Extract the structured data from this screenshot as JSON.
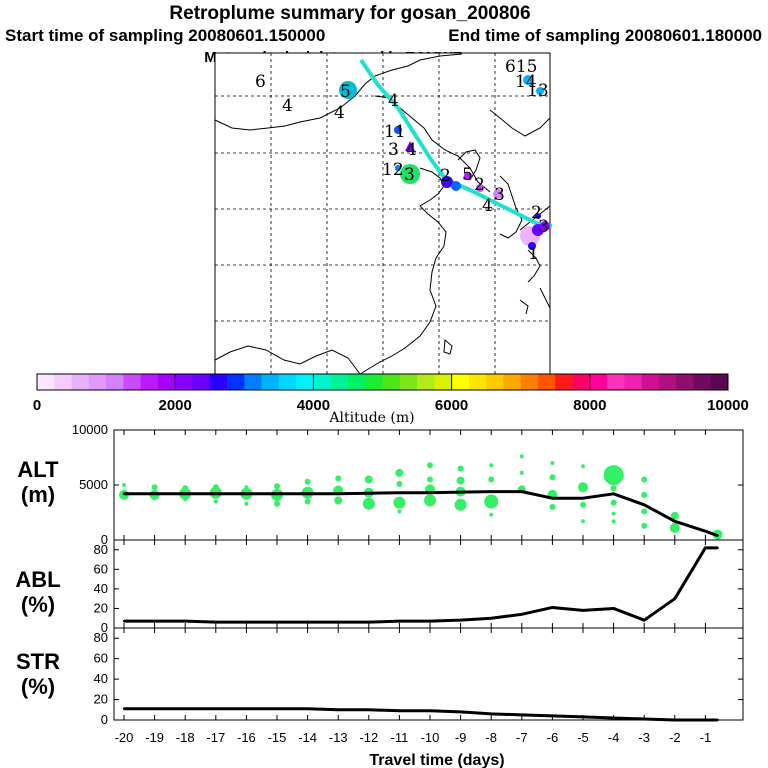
{
  "header": {
    "title": "Retroplume summary for gosan_200806",
    "start_label": "Start time of sampling 20080601.150000",
    "end_label": "End time of sampling 20080601.180000",
    "met_label": "Meteorological data used is ECMWF"
  },
  "map": {
    "day_labels": [
      {
        "text": "6",
        "color": "#00bcd4"
      },
      {
        "text": "4",
        "color": "#000000"
      },
      {
        "text": "5",
        "color": "#00bcd4"
      },
      {
        "text": "4",
        "color": "#000000"
      },
      {
        "text": "4",
        "color": "#000000"
      },
      {
        "text": "11",
        "color": "#000000"
      },
      {
        "text": "3",
        "color": "#000000"
      },
      {
        "text": "4",
        "color": "#000000"
      },
      {
        "text": "12",
        "color": "#000000"
      },
      {
        "text": "3",
        "color": "#000000"
      },
      {
        "text": "2",
        "color": "#000000"
      },
      {
        "text": "5",
        "color": "#000000"
      },
      {
        "text": "2",
        "color": "#000000"
      },
      {
        "text": "3",
        "color": "#000000"
      },
      {
        "text": "4",
        "color": "#000000"
      },
      {
        "text": "615",
        "color": "#00bcd4"
      },
      {
        "text": "14",
        "color": "#000000"
      },
      {
        "text": "13",
        "color": "#000000"
      },
      {
        "text": "2",
        "color": "#000000"
      },
      {
        "text": "3",
        "color": "#000000"
      },
      {
        "text": "1",
        "color": "#000000"
      }
    ],
    "track_color": "#20e0d0"
  },
  "colorbar": {
    "tick_labels": [
      "0",
      "2000",
      "4000",
      "6000",
      "8000",
      "10000"
    ],
    "xlabel": "Altitude (m)",
    "colors": [
      "#ffe6ff",
      "#f5ccff",
      "#eab3ff",
      "#e099ff",
      "#d580ff",
      "#c94dff",
      "#bb1aff",
      "#a600ff",
      "#8800ff",
      "#6a00ff",
      "#2a00ff",
      "#0033ff",
      "#0080ff",
      "#00b3ff",
      "#00d9ff",
      "#00f2ff",
      "#00f5cc",
      "#00f299",
      "#00f066",
      "#1aeb33",
      "#4de61a",
      "#80e61a",
      "#b3eb1a",
      "#d9f000",
      "#ffff00",
      "#ffe600",
      "#ffcc00",
      "#ffaa00",
      "#ff8000",
      "#ff5500",
      "#ff1a1a",
      "#ff0066",
      "#ff0099",
      "#ff33bb",
      "#f020b0",
      "#d01090",
      "#b01080",
      "#900e70",
      "#700a60",
      "#5a0850"
    ]
  },
  "panels": {
    "alt": {
      "label_line1": "ALT",
      "label_line2": "(m)"
    },
    "abl": {
      "label_line1": "ABL",
      "label_line2": "(%)"
    },
    "str": {
      "label_line1": "STR",
      "label_line2": "(%)"
    }
  },
  "xaxis": {
    "label": "Travel time (days)"
  },
  "chart_data": [
    {
      "type": "line",
      "title": "ALT (m)",
      "xlabel": "Travel time (days)",
      "ylabel": "ALT (m)",
      "xlim": [
        -20,
        0
      ],
      "ylim": [
        0,
        10000
      ],
      "yticks": [
        "10000",
        "5000",
        "0"
      ],
      "x": [
        -20,
        -19,
        -18,
        -17,
        -16,
        -15,
        -14,
        -13,
        -12,
        -11,
        -10,
        -9,
        -8,
        -7,
        -6,
        -5,
        -4,
        -3,
        -2,
        -1,
        -0.6
      ],
      "values": [
        4200,
        4200,
        4200,
        4200,
        4200,
        4200,
        4200,
        4200,
        4250,
        4300,
        4300,
        4350,
        4400,
        4400,
        3800,
        3800,
        4200,
        3200,
        1700,
        800,
        400
      ],
      "cluster_color": "#33f066",
      "clusters": [
        {
          "x": -20,
          "y": 5000,
          "s": 2
        },
        {
          "x": -20,
          "y": 4100,
          "s": 5
        },
        {
          "x": -19,
          "y": 4800,
          "s": 3
        },
        {
          "x": -19,
          "y": 4100,
          "s": 5
        },
        {
          "x": -19,
          "y": 3800,
          "s": 2
        },
        {
          "x": -18,
          "y": 4700,
          "s": 3
        },
        {
          "x": -18,
          "y": 4200,
          "s": 6
        },
        {
          "x": -18,
          "y": 3700,
          "s": 2
        },
        {
          "x": -17,
          "y": 4800,
          "s": 3
        },
        {
          "x": -17,
          "y": 4300,
          "s": 6
        },
        {
          "x": -17,
          "y": 3500,
          "s": 2
        },
        {
          "x": -16,
          "y": 4800,
          "s": 2
        },
        {
          "x": -16,
          "y": 4200,
          "s": 6
        },
        {
          "x": -16,
          "y": 3300,
          "s": 2
        },
        {
          "x": -15,
          "y": 4900,
          "s": 3
        },
        {
          "x": -15,
          "y": 4100,
          "s": 6
        },
        {
          "x": -15,
          "y": 3300,
          "s": 3
        },
        {
          "x": -14,
          "y": 5300,
          "s": 3
        },
        {
          "x": -14,
          "y": 4300,
          "s": 6
        },
        {
          "x": -14,
          "y": 3500,
          "s": 3
        },
        {
          "x": -13,
          "y": 5600,
          "s": 3
        },
        {
          "x": -13,
          "y": 4500,
          "s": 5
        },
        {
          "x": -13,
          "y": 3600,
          "s": 4
        },
        {
          "x": -12,
          "y": 5500,
          "s": 4
        },
        {
          "x": -12,
          "y": 4300,
          "s": 5
        },
        {
          "x": -12,
          "y": 3300,
          "s": 6
        },
        {
          "x": -11,
          "y": 6100,
          "s": 4
        },
        {
          "x": -11,
          "y": 5100,
          "s": 3
        },
        {
          "x": -11,
          "y": 3400,
          "s": 6
        },
        {
          "x": -11,
          "y": 2600,
          "s": 2
        },
        {
          "x": -10,
          "y": 6800,
          "s": 3
        },
        {
          "x": -10,
          "y": 5500,
          "s": 3
        },
        {
          "x": -10,
          "y": 4600,
          "s": 5
        },
        {
          "x": -10,
          "y": 3600,
          "s": 6
        },
        {
          "x": -9,
          "y": 6500,
          "s": 3
        },
        {
          "x": -9,
          "y": 5400,
          "s": 4
        },
        {
          "x": -9,
          "y": 4400,
          "s": 5
        },
        {
          "x": -9,
          "y": 3200,
          "s": 6
        },
        {
          "x": -8,
          "y": 6800,
          "s": 2
        },
        {
          "x": -8,
          "y": 5500,
          "s": 3
        },
        {
          "x": -8,
          "y": 3500,
          "s": 7
        },
        {
          "x": -8,
          "y": 2300,
          "s": 2
        },
        {
          "x": -7,
          "y": 7600,
          "s": 2
        },
        {
          "x": -7,
          "y": 6100,
          "s": 2
        },
        {
          "x": -7,
          "y": 4600,
          "s": 4
        },
        {
          "x": -6,
          "y": 7000,
          "s": 2
        },
        {
          "x": -6,
          "y": 5700,
          "s": 3
        },
        {
          "x": -6,
          "y": 4100,
          "s": 5
        },
        {
          "x": -6,
          "y": 3000,
          "s": 3
        },
        {
          "x": -5,
          "y": 6700,
          "s": 2
        },
        {
          "x": -5,
          "y": 4800,
          "s": 5
        },
        {
          "x": -5,
          "y": 3200,
          "s": 3
        },
        {
          "x": -5,
          "y": 1700,
          "s": 2
        },
        {
          "x": -4,
          "y": 5900,
          "s": 10
        },
        {
          "x": -4,
          "y": 4700,
          "s": 3
        },
        {
          "x": -4,
          "y": 3400,
          "s": 3
        },
        {
          "x": -4,
          "y": 2400,
          "s": 2
        },
        {
          "x": -4,
          "y": 1700,
          "s": 2
        },
        {
          "x": -3,
          "y": 5500,
          "s": 3
        },
        {
          "x": -3,
          "y": 4100,
          "s": 3
        },
        {
          "x": -3,
          "y": 2600,
          "s": 3
        },
        {
          "x": -3,
          "y": 1300,
          "s": 3
        },
        {
          "x": -2,
          "y": 2200,
          "s": 4
        },
        {
          "x": -2,
          "y": 1100,
          "s": 5
        },
        {
          "x": -0.6,
          "y": 500,
          "s": 5
        }
      ]
    },
    {
      "type": "line",
      "title": "ABL (%)",
      "xlabel": "Travel time (days)",
      "ylabel": "ABL (%)",
      "xlim": [
        -20,
        0
      ],
      "ylim": [
        0,
        90
      ],
      "yticks": [
        "80",
        "60",
        "40",
        "20",
        "0"
      ],
      "x": [
        -20,
        -19,
        -18,
        -17,
        -16,
        -15,
        -14,
        -13,
        -12,
        -11,
        -10,
        -9,
        -8,
        -7,
        -6,
        -5,
        -4,
        -3,
        -2,
        -1,
        -0.6
      ],
      "values": [
        7,
        7,
        7,
        6,
        6,
        6,
        6,
        6,
        6,
        7,
        7,
        8,
        10,
        14,
        21,
        18,
        20,
        8,
        30,
        82,
        82
      ]
    },
    {
      "type": "line",
      "title": "STR (%)",
      "xlabel": "Travel time (days)",
      "ylabel": "STR (%)",
      "xlim": [
        -20,
        0
      ],
      "ylim": [
        0,
        90
      ],
      "yticks": [
        "80",
        "60",
        "40",
        "20",
        "0"
      ],
      "xticks": [
        "-20",
        "-19",
        "-18",
        "-17",
        "-16",
        "-15",
        "-14",
        "-13",
        "-12",
        "-11",
        "-10",
        "-9",
        "-8",
        "-7",
        "-6",
        "-5",
        "-4",
        "-3",
        "-2",
        "-1"
      ],
      "x": [
        -20,
        -19,
        -18,
        -17,
        -16,
        -15,
        -14,
        -13,
        -12,
        -11,
        -10,
        -9,
        -8,
        -7,
        -6,
        -5,
        -4,
        -3,
        -2,
        -1,
        -0.6
      ],
      "values": [
        11,
        11,
        11,
        11,
        11,
        11,
        11,
        10,
        10,
        9,
        9,
        8,
        6,
        5,
        4,
        3,
        2,
        1,
        0,
        0,
        0
      ]
    }
  ]
}
